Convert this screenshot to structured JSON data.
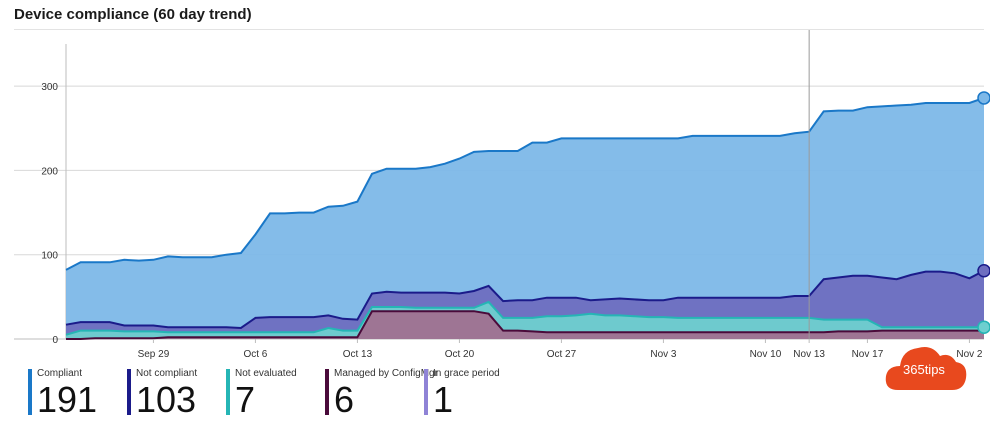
{
  "title": "Device compliance (60 day trend)",
  "chart_data": {
    "type": "area",
    "x_ticks": [
      "Sep 29",
      "Oct 6",
      "Oct 13",
      "Oct 20",
      "Oct 27",
      "Nov 3",
      "Nov 10",
      "Nov 13",
      "Nov 17",
      "Nov 2"
    ],
    "y_ticks": [
      "0",
      "100",
      "200",
      "300"
    ],
    "ylim": [
      0,
      350
    ],
    "grid": true,
    "x_days": [
      0,
      1,
      2,
      3,
      4,
      5,
      6,
      7,
      8,
      9,
      10,
      11,
      12,
      13,
      14,
      15,
      16,
      17,
      18,
      19,
      20,
      21,
      22,
      23,
      24,
      25,
      26,
      27,
      28,
      29,
      30,
      31,
      32,
      33,
      34,
      35,
      36,
      37,
      38,
      39,
      40,
      41,
      42,
      43,
      44,
      45,
      46,
      47,
      48,
      49,
      50,
      51,
      52,
      53,
      54,
      55,
      56,
      57,
      58,
      59,
      60,
      61,
      62,
      63
    ],
    "series": [
      {
        "name": "Compliant",
        "color": "#7db8e8",
        "line": "#1a78c8",
        "values": [
          82,
          91,
          91,
          91,
          94,
          93,
          94,
          98,
          97,
          97,
          97,
          100,
          102,
          124,
          149,
          149,
          150,
          150,
          157,
          158,
          163,
          196,
          202,
          202,
          202,
          204,
          208,
          214,
          222,
          223,
          223,
          223,
          233,
          233,
          238,
          238,
          238,
          238,
          238,
          238,
          238,
          238,
          238,
          241,
          241,
          241,
          241,
          241,
          241,
          241,
          244,
          246,
          270,
          271,
          271,
          275,
          276,
          277,
          278,
          280,
          280,
          280,
          280,
          286
        ]
      },
      {
        "name": "Not compliant",
        "color": "#6e6ec0",
        "line": "#1b1b8a",
        "values": [
          17,
          20,
          20,
          20,
          16,
          16,
          16,
          14,
          14,
          14,
          14,
          14,
          13,
          25,
          26,
          26,
          26,
          26,
          28,
          24,
          23,
          54,
          56,
          55,
          55,
          55,
          55,
          54,
          57,
          63,
          45,
          46,
          46,
          49,
          49,
          49,
          46,
          47,
          48,
          47,
          46,
          46,
          49,
          49,
          49,
          49,
          49,
          49,
          49,
          49,
          51,
          51,
          71,
          73,
          75,
          75,
          73,
          71,
          76,
          80,
          80,
          78,
          72,
          81
        ]
      },
      {
        "name": "Not evaluated",
        "color": "#6ecfcf",
        "line": "#25b5b5",
        "values": [
          5,
          10,
          10,
          10,
          9,
          9,
          9,
          8,
          8,
          8,
          8,
          8,
          8,
          8,
          8,
          8,
          8,
          8,
          13,
          10,
          10,
          38,
          38,
          38,
          37,
          37,
          37,
          37,
          37,
          44,
          25,
          25,
          25,
          27,
          27,
          28,
          30,
          28,
          28,
          27,
          26,
          26,
          25,
          25,
          25,
          25,
          25,
          25,
          25,
          25,
          25,
          25,
          23,
          23,
          23,
          23,
          14,
          14,
          14,
          14,
          14,
          14,
          14,
          14
        ]
      },
      {
        "name": "Managed by ConfigMgr",
        "color": "#a07090",
        "line": "#4a0a3a",
        "values": [
          0,
          0,
          1,
          1,
          1,
          1,
          1,
          2,
          2,
          2,
          2,
          2,
          2,
          2,
          2,
          2,
          2,
          2,
          2,
          2,
          2,
          33,
          33,
          33,
          33,
          33,
          33,
          33,
          33,
          30,
          10,
          10,
          9,
          8,
          8,
          8,
          8,
          8,
          8,
          8,
          8,
          8,
          8,
          8,
          8,
          8,
          8,
          8,
          8,
          8,
          8,
          8,
          8,
          9,
          9,
          9,
          10,
          10,
          10,
          10,
          10,
          10,
          10,
          10
        ]
      },
      {
        "name": "In grace period",
        "color": "#9b8fd8",
        "line": "#7e6fcf",
        "values": []
      }
    ]
  },
  "legend": [
    {
      "label": "Compliant",
      "value": "191",
      "color": "#1a78c8"
    },
    {
      "label": "Not compliant",
      "value": "103",
      "color": "#1b1b8a"
    },
    {
      "label": "Not evaluated",
      "value": "7",
      "color": "#25b5b5"
    },
    {
      "label": "Managed by ConfigMgr",
      "value": "6",
      "color": "#4a0a3a"
    },
    {
      "label": "In grace period",
      "value": "1",
      "color": "#8f83d6"
    }
  ],
  "logo": {
    "text": "365tips",
    "color": "#e8491e"
  }
}
